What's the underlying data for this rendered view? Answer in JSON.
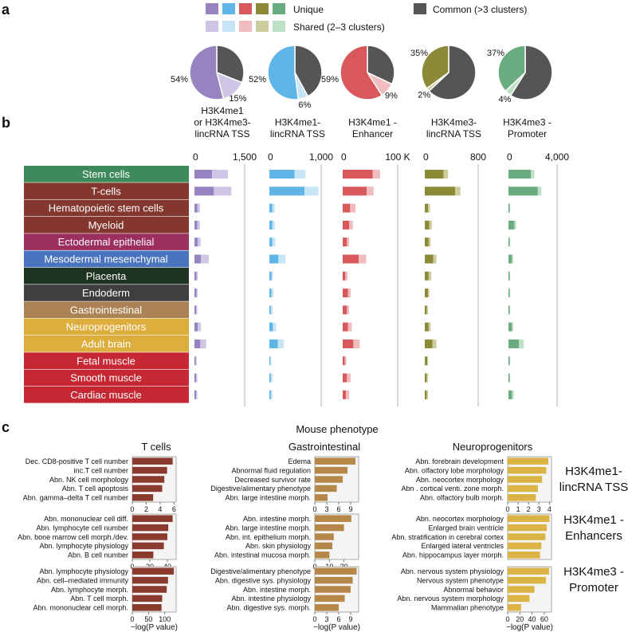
{
  "panels": {
    "a": "a",
    "b": "b",
    "c": "c"
  },
  "legend": {
    "unique_label": "Unique",
    "shared_label": "Shared (2–3 clusters)",
    "common_label": "Common (>3 clusters)",
    "unique_colors": [
      "#9683c0",
      "#5fb5e6",
      "#d8585c",
      "#8c8a36",
      "#6aac80"
    ],
    "shared_colors": [
      "#cec6e4",
      "#c6e5f6",
      "#f0bcbe",
      "#cdcc9c",
      "#bee0c6"
    ],
    "common_color": "#555555"
  },
  "chart_data": [
    {
      "id": "pies",
      "type": "pie",
      "pies": [
        {
          "unique": 54,
          "shared": 15,
          "unique_label": "54%",
          "shared_label": "15%"
        },
        {
          "unique": 52,
          "shared": 6,
          "unique_label": "52%",
          "shared_label": "6%"
        },
        {
          "unique": 59,
          "shared": 9,
          "unique_label": "59%",
          "shared_label": "9%"
        },
        {
          "unique": 35,
          "shared": 2,
          "unique_label": "35%",
          "shared_label": "2%"
        },
        {
          "unique": 37,
          "shared": 4,
          "unique_label": "37%",
          "shared_label": "4%"
        }
      ]
    },
    {
      "id": "cluster_bars",
      "type": "bar",
      "categories": [
        "Stem cells",
        "T-cells",
        "Hematopoietic stem cells",
        "Myeloid",
        "Ectodermal epithelial",
        "Mesodermal mesenchymal",
        "Placenta",
        "Endoderm",
        "Gastrointestinal",
        "Neuroprogenitors",
        "Adult brain",
        "Fetal muscle",
        "Smooth muscle",
        "Cardiac muscle"
      ],
      "category_colors": [
        "#3f8a5a",
        "#84372e",
        "#84372e",
        "#84372e",
        "#9c2f5e",
        "#4a74be",
        "#1f3323",
        "#3f3f3f",
        "#ab8253",
        "#ddae3d",
        "#ddae3d",
        "#c52733",
        "#c52733",
        "#c52733"
      ],
      "columns": [
        {
          "title": [
            "H3K4me1",
            "or H3K4me3-",
            "lincRNA TSS"
          ],
          "ticks": [
            "0",
            "1,500"
          ],
          "max": 1500,
          "unique": [
            540,
            600,
            90,
            90,
            100,
            200,
            60,
            60,
            50,
            100,
            180,
            40,
            50,
            50
          ],
          "shared": [
            490,
            540,
            80,
            80,
            90,
            240,
            45,
            40,
            40,
            100,
            180,
            30,
            40,
            40
          ]
        },
        {
          "title": [
            "H3K4me1-",
            "lincRNA TSS"
          ],
          "ticks": [
            "0",
            "1,000"
          ],
          "max": 1000,
          "unique": [
            500,
            700,
            60,
            60,
            60,
            180,
            40,
            40,
            30,
            70,
            170,
            20,
            30,
            30
          ],
          "shared": [
            220,
            280,
            50,
            50,
            60,
            140,
            30,
            40,
            35,
            65,
            120,
            20,
            30,
            30
          ]
        },
        {
          "title": [
            "H3K4me1 -",
            "Enhancer"
          ],
          "ticks": [
            "0",
            "100 K"
          ],
          "max": 100,
          "unique": [
            56,
            45,
            14,
            12,
            8,
            30,
            5,
            10,
            8,
            10,
            20,
            4,
            8,
            6
          ],
          "shared": [
            14,
            13,
            10,
            7,
            4,
            14,
            4,
            5,
            4,
            7,
            12,
            3,
            7,
            6
          ]
        },
        {
          "title": [
            "H3K4me3-",
            "lincRNA TSS"
          ],
          "ticks": [
            "0",
            "800"
          ],
          "max": 800,
          "unique": [
            290,
            470,
            50,
            70,
            60,
            130,
            60,
            50,
            30,
            60,
            120,
            40,
            30,
            30
          ],
          "shared": [
            70,
            80,
            30,
            40,
            30,
            50,
            40,
            20,
            20,
            30,
            60,
            10,
            20,
            20
          ]
        },
        {
          "title": [
            "H3K4me3 -",
            "Promoter"
          ],
          "ticks": [
            "0",
            "4,000"
          ],
          "max": 4000,
          "unique": [
            1900,
            2500,
            100,
            500,
            100,
            300,
            100,
            100,
            100,
            300,
            900,
            100,
            100,
            300
          ],
          "shared": [
            300,
            300,
            50,
            150,
            50,
            100,
            50,
            50,
            50,
            100,
            400,
            50,
            50,
            150
          ]
        }
      ]
    },
    {
      "id": "phenotype_bars",
      "type": "bar",
      "title": "Mouse phenotype",
      "xlabel": "−log(P value)",
      "columns": [
        {
          "name": "T cells",
          "color": "#8b3a2e",
          "groups": [
            {
              "labels": [
                "Dec. CD8-positive T cell number",
                "inc.T cell number",
                "Abn. NK cell morphology",
                "Abn. T cell apoptosis",
                "Abn. gamma–delta T cell number"
              ],
              "values": [
                5.8,
                5.0,
                4.6,
                4.3,
                3.0
              ],
              "max": 6.3,
              "ticks": [
                "0",
                "2",
                "4",
                "6"
              ]
            },
            {
              "labels": [
                "Abn. mononuclear cell diff.",
                "Abn. lymphocyte cell number",
                "Abn. bone marrow cell morph./dev.",
                "Abn. lymphocyte physiology",
                "Abn. B cell number"
              ],
              "values": [
                46,
                41,
                40,
                36,
                24
              ],
              "max": 50,
              "ticks": [
                "0",
                "20",
                "40"
              ]
            },
            {
              "labels": [
                "Abn. lymphocyte physiology",
                "Abn. cell–mediated immunity",
                "Abn. lymphocyte morph.",
                "Abn. T cell morph.",
                "Abn. mononuclear cell morph."
              ],
              "values": [
                128,
                110,
                106,
                92,
                90
              ],
              "max": 135,
              "ticks": [
                "0",
                "50",
                "100"
              ]
            }
          ]
        },
        {
          "name": "Gastrointestinal",
          "color": "#b58849",
          "groups": [
            {
              "labels": [
                "Edema",
                "Abnormal fluid regulation",
                "Decreased survivor rate",
                "Digestive/alimentary phenotype",
                "Abn. large intestine morph."
              ],
              "values": [
                10.2,
                8.2,
                7.0,
                5.5,
                3.2
              ],
              "max": 11,
              "ticks": [
                "0",
                "3",
                "6",
                "9"
              ]
            },
            {
              "labels": [
                "Abn. intestine morph.",
                "Abn. large intestine morph.",
                "Abn. int. epithelium morph.",
                "Abn. skin physiology",
                "Abn. intestinal mucosa morph."
              ],
              "values": [
                25,
                20,
                13,
                12,
                10
              ],
              "max": 30,
              "ticks": [
                "0",
                "10",
                "20"
              ]
            },
            {
              "labels": [
                "Digestive/alimentary phenotype",
                "Abn. digestive sys. physiology",
                "Abn. intestine morph.",
                "Abn. intestine physiology",
                "Abn. digestive sys. morph."
              ],
              "values": [
                10.5,
                9.5,
                9.0,
                7.5,
                6.0
              ],
              "max": 11,
              "ticks": [
                "0",
                "3",
                "6",
                "9"
              ]
            }
          ]
        },
        {
          "name": "Neuroprogenitors",
          "color": "#dcb345",
          "groups": [
            {
              "labels": [
                "Abn. forebrain development",
                "Abn. olfactory lobe morphology",
                "Abn. neocortex morphology",
                "Abn . cortical venti. zone morph.",
                "Abn. olfactory bulb morph."
              ],
              "values": [
                3.9,
                3.7,
                3.3,
                2.9,
                2.7
              ],
              "max": 4.2,
              "ticks": [
                "0",
                "1",
                "2",
                "3",
                "4"
              ]
            },
            {
              "labels": [
                "Abn. neocortex morphology",
                "Enlarged brain ventricle",
                "Abn. stratification in cerebral cortex",
                "Enlarged lateral ventricles",
                "Abn. hippocampus layer morph."
              ],
              "values": [
                6.2,
                5.8,
                5.6,
                5.0,
                4.8
              ],
              "max": 6.5,
              "ticks": []
            },
            {
              "labels": [
                "Abn. nervous system physiology",
                "Nervous system phenotype",
                "Abnormal behavior",
                "Abn. nervous system morphology",
                "Mammalian phenotype"
              ],
              "values": [
                68,
                63,
                44,
                36,
                22
              ],
              "max": 72,
              "ticks": [
                "0",
                "20",
                "40",
                "60"
              ]
            }
          ]
        }
      ],
      "row_labels": [
        [
          "H3K4me1-",
          "lincRNA TSS"
        ],
        [
          "H3K4me1 -",
          "Enhancers"
        ],
        [
          "H3K4me3 -",
          "Promoter"
        ]
      ]
    }
  ]
}
